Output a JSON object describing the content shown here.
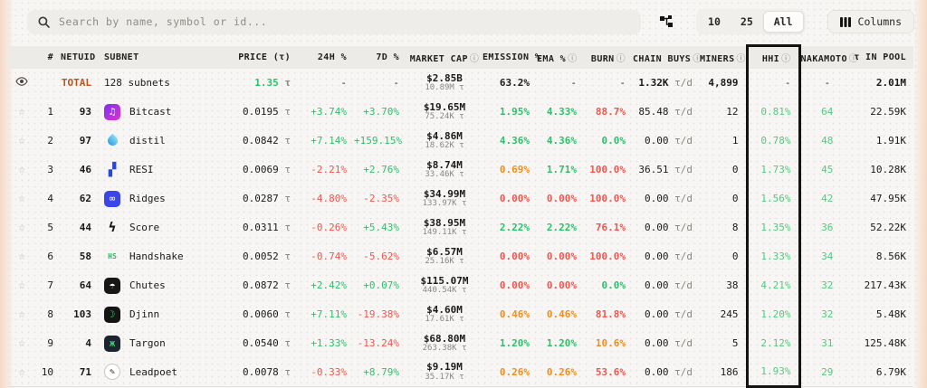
{
  "toolbar": {
    "search_placeholder": "Search by name, symbol or id...",
    "page_sizes": [
      "10",
      "25",
      "All"
    ],
    "active_page_size": "All",
    "columns_label": "Columns"
  },
  "palette": {
    "g": "#2fbf6c",
    "r": "#ee564f",
    "o": "#ef8e1d",
    "soft": "#57c783",
    "unit": "#8a8783",
    "total": "#b9541e",
    "hhi_box": "#141311",
    "header_bg": "#edebe8"
  },
  "table": {
    "headers": [
      {
        "label": "#",
        "info": false
      },
      {
        "label": "NETUID",
        "info": false
      },
      {
        "label": "SUBNET",
        "info": false
      },
      {
        "label": "PRICE (τ)",
        "info": false
      },
      {
        "label": "24H %",
        "info": false
      },
      {
        "label": "7D %",
        "info": false
      },
      {
        "label": "MARKET CAP",
        "info": true
      },
      {
        "label": "EMISSION %",
        "info": false
      },
      {
        "label": "EMA %",
        "info": true
      },
      {
        "label": "BURN",
        "info": true
      },
      {
        "label": "CHAIN BUYS",
        "info": true
      },
      {
        "label": "MINERS",
        "info": true
      },
      {
        "label": "HHI",
        "info": true,
        "highlighted": true
      },
      {
        "label": "NAKAMOTO",
        "info": true
      },
      {
        "label": "τ IN POOL",
        "info": false
      }
    ],
    "total_row": {
      "label": "TOTAL",
      "subnets": "128 subnets",
      "price": "1.35",
      "price_unit": "τ",
      "h24": "-",
      "d7": "-",
      "mcap": "$2.85B",
      "mcap_tao": "10.89M τ",
      "emission": "63.2%",
      "ema": "-",
      "burn": "-",
      "chain_buys": "1.32K",
      "chain_unit": "τ/d",
      "miners": "4,899",
      "hhi": "-",
      "nakamoto": "-",
      "pool": "2.01M"
    },
    "rows": [
      {
        "rank": "1",
        "netuid": "93",
        "name": "Bitcast",
        "icon": {
          "shape": "rsq",
          "bg": "linear-gradient(135deg,#7b2ff7,#e034c8)",
          "fg": "#ffffff",
          "glyph": "♫"
        },
        "price": "0.0195",
        "h24": {
          "v": "+3.74%",
          "c": "g"
        },
        "d7": {
          "v": "+3.70%",
          "c": "g"
        },
        "mcap": "$19.65M",
        "mcap_tao": "75.24K τ",
        "emission": {
          "v": "1.95%",
          "c": "g"
        },
        "ema": {
          "v": "4.33%",
          "c": "g"
        },
        "burn": {
          "v": "88.7%",
          "c": "r"
        },
        "chain_buys": "85.48",
        "miners": "12",
        "hhi": "0.81%",
        "nakamoto": "64",
        "pool": "22.59K"
      },
      {
        "rank": "2",
        "netuid": "97",
        "name": "distil",
        "icon": {
          "shape": "drop",
          "bg": "linear-gradient(180deg,#8fd9f8,#2ba4e0)"
        },
        "price": "0.0842",
        "h24": {
          "v": "+7.14%",
          "c": "g"
        },
        "d7": {
          "v": "+159.15%",
          "c": "g"
        },
        "mcap": "$4.86M",
        "mcap_tao": "18.62K τ",
        "emission": {
          "v": "4.36%",
          "c": "g"
        },
        "ema": {
          "v": "4.36%",
          "c": "g"
        },
        "burn": {
          "v": "0.0%",
          "c": "g"
        },
        "chain_buys": "0.00",
        "miners": "1",
        "hhi": "0.78%",
        "nakamoto": "48",
        "pool": "1.91K"
      },
      {
        "rank": "3",
        "netuid": "46",
        "name": "RESI",
        "icon": {
          "shape": "bare",
          "fg": "#2947d6",
          "glyph": "▞"
        },
        "price": "0.0069",
        "h24": {
          "v": "-2.21%",
          "c": "r"
        },
        "d7": {
          "v": "+2.76%",
          "c": "g"
        },
        "mcap": "$8.74M",
        "mcap_tao": "33.46K τ",
        "emission": {
          "v": "0.69%",
          "c": "o"
        },
        "ema": {
          "v": "1.71%",
          "c": "g"
        },
        "burn": {
          "v": "100.0%",
          "c": "r"
        },
        "chain_buys": "36.51",
        "miners": "0",
        "hhi": "1.73%",
        "nakamoto": "45",
        "pool": "10.28K"
      },
      {
        "rank": "4",
        "netuid": "62",
        "name": "Ridges",
        "icon": {
          "shape": "rsq",
          "bg": "#3b46e8",
          "fg": "#ffffff",
          "glyph": "∞"
        },
        "price": "0.0287",
        "h24": {
          "v": "-4.80%",
          "c": "r"
        },
        "d7": {
          "v": "-2.35%",
          "c": "r"
        },
        "mcap": "$34.99M",
        "mcap_tao": "133.97K τ",
        "emission": {
          "v": "0.00%",
          "c": "r"
        },
        "ema": {
          "v": "0.00%",
          "c": "r"
        },
        "burn": {
          "v": "100.0%",
          "c": "r"
        },
        "chain_buys": "0.00",
        "miners": "0",
        "hhi": "1.56%",
        "nakamoto": "42",
        "pool": "47.95K"
      },
      {
        "rank": "5",
        "netuid": "44",
        "name": "Score",
        "icon": {
          "shape": "bare",
          "fg": "#141311",
          "glyph": "ϟ"
        },
        "price": "0.0311",
        "h24": {
          "v": "-0.26%",
          "c": "r"
        },
        "d7": {
          "v": "+5.43%",
          "c": "g"
        },
        "mcap": "$38.95M",
        "mcap_tao": "149.11K τ",
        "emission": {
          "v": "2.22%",
          "c": "g"
        },
        "ema": {
          "v": "2.22%",
          "c": "g"
        },
        "burn": {
          "v": "76.1%",
          "c": "r"
        },
        "chain_buys": "0.00",
        "miners": "8",
        "hhi": "1.35%",
        "nakamoto": "36",
        "pool": "52.22K"
      },
      {
        "rank": "6",
        "netuid": "58",
        "name": "Handshake",
        "icon": {
          "shape": "txt",
          "fg": "#34b36b",
          "glyph": "HS"
        },
        "price": "0.0052",
        "h24": {
          "v": "-0.74%",
          "c": "r"
        },
        "d7": {
          "v": "-5.62%",
          "c": "r"
        },
        "mcap": "$6.57M",
        "mcap_tao": "25.16K τ",
        "emission": {
          "v": "0.00%",
          "c": "r"
        },
        "ema": {
          "v": "0.00%",
          "c": "r"
        },
        "burn": {
          "v": "100.0%",
          "c": "r"
        },
        "chain_buys": "0.00",
        "miners": "0",
        "hhi": "1.33%",
        "nakamoto": "34",
        "pool": "8.56K"
      },
      {
        "rank": "7",
        "netuid": "64",
        "name": "Chutes",
        "icon": {
          "shape": "rsq",
          "bg": "#171717",
          "fg": "#ffffff",
          "glyph": "☂"
        },
        "price": "0.0872",
        "h24": {
          "v": "+2.42%",
          "c": "g"
        },
        "d7": {
          "v": "+0.07%",
          "c": "g"
        },
        "mcap": "$115.07M",
        "mcap_tao": "440.54K τ",
        "emission": {
          "v": "0.00%",
          "c": "r"
        },
        "ema": {
          "v": "0.00%",
          "c": "r"
        },
        "burn": {
          "v": "0.0%",
          "c": "g"
        },
        "chain_buys": "0.00",
        "miners": "38",
        "hhi": "4.21%",
        "nakamoto": "32",
        "pool": "217.43K"
      },
      {
        "rank": "8",
        "netuid": "103",
        "name": "Djinn",
        "icon": {
          "shape": "rsq",
          "bg": "#141414",
          "fg": "#3ecf7a",
          "glyph": "☽"
        },
        "price": "0.0060",
        "h24": {
          "v": "+7.11%",
          "c": "g"
        },
        "d7": {
          "v": "-19.38%",
          "c": "r"
        },
        "mcap": "$4.60M",
        "mcap_tao": "17.61K τ",
        "emission": {
          "v": "0.46%",
          "c": "o"
        },
        "ema": {
          "v": "0.46%",
          "c": "o"
        },
        "burn": {
          "v": "81.8%",
          "c": "r"
        },
        "chain_buys": "0.00",
        "miners": "245",
        "hhi": "1.20%",
        "nakamoto": "32",
        "pool": "5.48K"
      },
      {
        "rank": "9",
        "netuid": "4",
        "name": "Targon",
        "icon": {
          "shape": "rsq",
          "bg": "#1c2430",
          "fg": "#4adf7c",
          "glyph": "ж"
        },
        "price": "0.0540",
        "h24": {
          "v": "+1.33%",
          "c": "g"
        },
        "d7": {
          "v": "-13.24%",
          "c": "r"
        },
        "mcap": "$68.80M",
        "mcap_tao": "263.38K τ",
        "emission": {
          "v": "1.20%",
          "c": "g"
        },
        "ema": {
          "v": "1.20%",
          "c": "g"
        },
        "burn": {
          "v": "10.6%",
          "c": "o"
        },
        "chain_buys": "0.00",
        "miners": "5",
        "hhi": "2.12%",
        "nakamoto": "31",
        "pool": "125.48K"
      },
      {
        "rank": "10",
        "netuid": "71",
        "name": "Leadpoet",
        "icon": {
          "shape": "circ",
          "bg": "#ffffff",
          "border": "#c9c6c1",
          "fg": "#3a3835",
          "glyph": "✎"
        },
        "price": "0.0078",
        "h24": {
          "v": "-0.33%",
          "c": "r"
        },
        "d7": {
          "v": "+8.79%",
          "c": "g"
        },
        "mcap": "$9.19M",
        "mcap_tao": "35.17K τ",
        "emission": {
          "v": "0.26%",
          "c": "o"
        },
        "ema": {
          "v": "0.26%",
          "c": "o"
        },
        "burn": {
          "v": "53.6%",
          "c": "r"
        },
        "chain_buys": "0.00",
        "miners": "186",
        "hhi": "1.93%",
        "nakamoto": "29",
        "pool": "6.79K"
      }
    ],
    "price_unit": "τ",
    "chain_unit": "τ/d"
  }
}
